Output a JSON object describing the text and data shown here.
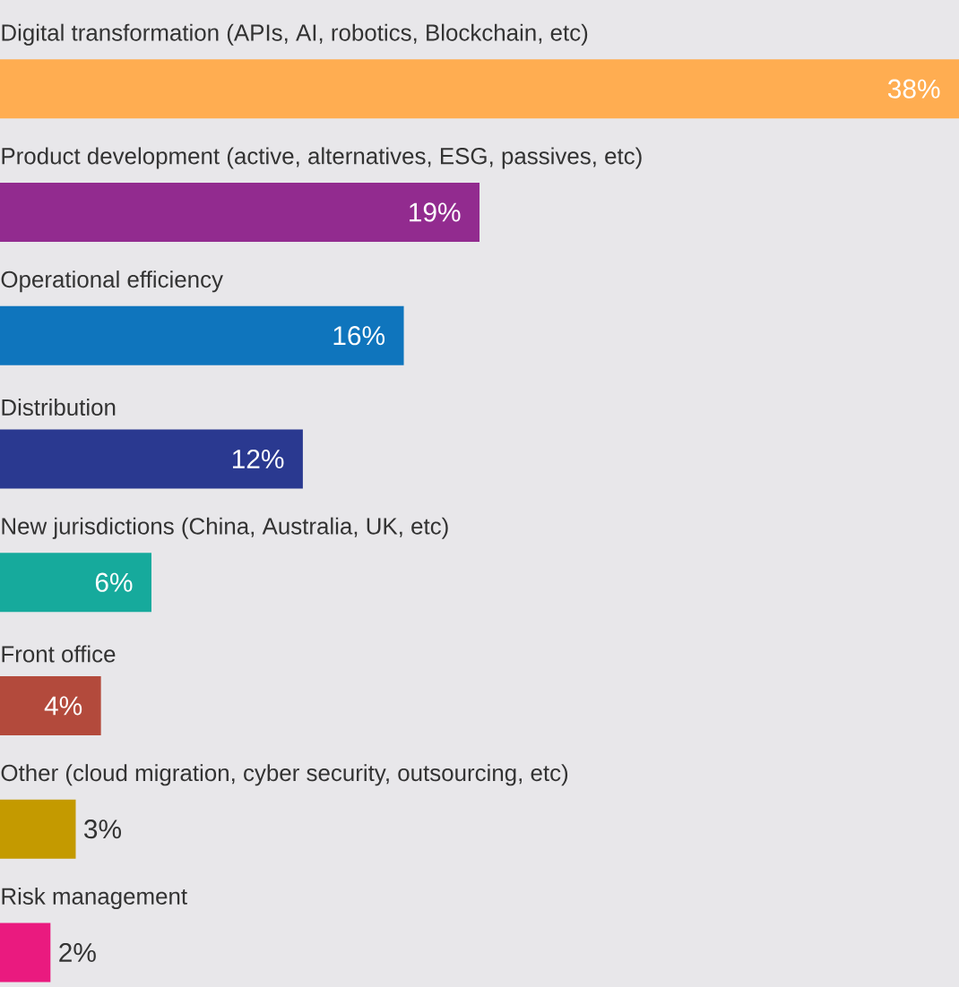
{
  "chart_data": {
    "type": "bar",
    "orientation": "horizontal",
    "categories": [
      "Digital transformation (APIs, AI, robotics, Blockchain, etc)",
      "Product development (active, alternatives, ESG, passives, etc)",
      "Operational efficiency",
      "Distribution",
      "New jurisdictions (China, Australia, UK, etc)",
      "Front office",
      "Other (cloud migration, cyber security, outsourcing, etc)",
      "Risk management"
    ],
    "values": [
      38,
      19,
      16,
      12,
      6,
      4,
      3,
      2
    ],
    "value_labels": [
      "38%",
      "19%",
      "16%",
      "12%",
      "6%",
      "4%",
      "3%",
      "2%"
    ],
    "colors": [
      "#ffad51",
      "#922b8f",
      "#0f75bd",
      "#2a3990",
      "#16aa9c",
      "#b34a3c",
      "#c49a00",
      "#ea1a7f"
    ]
  }
}
